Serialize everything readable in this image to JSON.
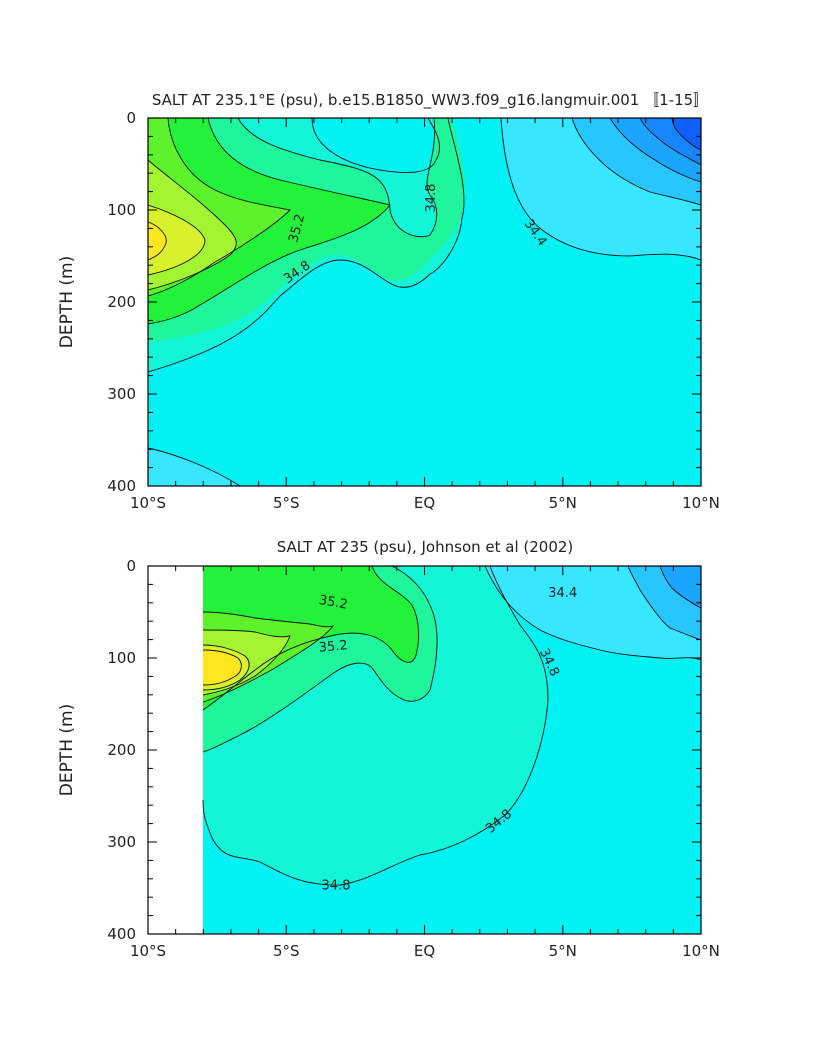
{
  "chart_data": [
    {
      "type": "contour",
      "title": "SALT AT 235.1°E (psu), b.e15.B1850_WW3.f09_g16.langmuir.001 〚1-15〛",
      "ylabel": "DEPTH (m)",
      "xlabel": "",
      "x_ticks": [
        "10°S",
        "5°S",
        "EQ",
        "5°N",
        "10°N"
      ],
      "x_tick_values": [
        -10,
        -5,
        0,
        5,
        10
      ],
      "y_ticks": [
        "0",
        "100",
        "200",
        "300",
        "400"
      ],
      "y_tick_values": [
        0,
        100,
        200,
        300,
        400
      ],
      "xlim": [
        -10,
        10
      ],
      "ylim": [
        400,
        0
      ],
      "contour_labels": [
        {
          "text": "35.2",
          "x": -4.6,
          "y": 120,
          "rotate": -75
        },
        {
          "text": "34.8",
          "x": -4.6,
          "y": 168,
          "rotate": -35
        },
        {
          "text": "34.8",
          "x": 0.25,
          "y": 87,
          "rotate": -90
        },
        {
          "text": "34.4",
          "x": 4.0,
          "y": 125,
          "rotate": 55
        }
      ],
      "colors": {
        "yellow": "#ffe61e",
        "yellow_green": "#d7f22d",
        "light_green": "#a3f532",
        "green": "#5ef22c",
        "bright_green": "#23f23a",
        "pale_green": "#1ff59a",
        "aqua": "#12f5d7",
        "cyan": "#00f2f2",
        "light_blue": "#37e6ff",
        "sky_blue": "#28c6ff",
        "blue1": "#1aa6ff",
        "blue2": "#1685ff",
        "blue3": "#1060ff"
      }
    },
    {
      "type": "contour",
      "title": "SALT AT 235 (psu), Johnson et al (2002)",
      "ylabel": "DEPTH (m)",
      "xlabel": "",
      "x_ticks": [
        "10°S",
        "5°S",
        "EQ",
        "5°N",
        "10°N"
      ],
      "x_tick_values": [
        -10,
        -5,
        0,
        5,
        10
      ],
      "y_ticks": [
        "0",
        "100",
        "200",
        "300",
        "400"
      ],
      "y_tick_values": [
        0,
        100,
        200,
        300,
        400
      ],
      "xlim": [
        -10,
        10
      ],
      "ylim": [
        400,
        0
      ],
      "data_x_range": [
        -8,
        10
      ],
      "contour_labels": [
        {
          "text": "35.2",
          "x": -3.3,
          "y": 40,
          "rotate": 10
        },
        {
          "text": "35.2",
          "x": -3.3,
          "y": 88,
          "rotate": -5
        },
        {
          "text": "34.4",
          "x": 5.0,
          "y": 30,
          "rotate": 0
        },
        {
          "text": "34.8",
          "x": 4.5,
          "y": 105,
          "rotate": 65
        },
        {
          "text": "34.8",
          "x": 2.7,
          "y": 278,
          "rotate": -40
        },
        {
          "text": "34.8",
          "x": -3.2,
          "y": 348,
          "rotate": 0
        }
      ],
      "colors": {
        "yellow": "#ffe61e",
        "yellow_green": "#d7f22d",
        "light_green": "#a3f532",
        "green": "#5ef22c",
        "bright_green": "#23f23a",
        "pale_green": "#1ff59a",
        "aqua": "#12f5d7",
        "cyan": "#00f2f2",
        "light_blue": "#37e6ff",
        "sky_blue": "#28c6ff",
        "blue1": "#1aa6ff",
        "blue2": "#1685ff",
        "blue3": "#1060ff"
      }
    }
  ]
}
